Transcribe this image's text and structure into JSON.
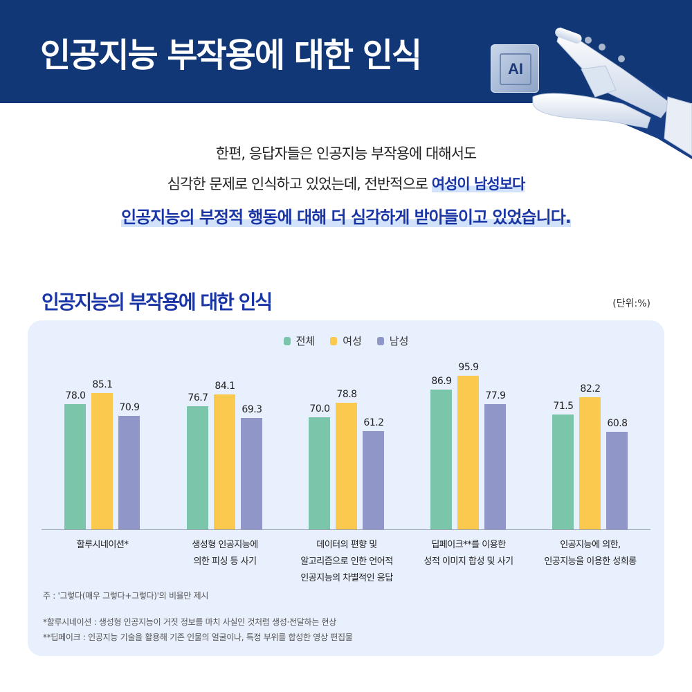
{
  "header": {
    "title": "인공지능 부작용에 대한 인식",
    "chip_label": "AI",
    "bg_color": "#123776"
  },
  "intro": {
    "line1": "한편, 응답자들은 인공지능 부작용에 대해서도",
    "line2_plain": "심각한 문제로 인식하고 있었는데, 전반적으로 ",
    "line2_highlight": "여성이 남성보다",
    "line3_highlight": "인공지능의 부정적 행동에 대해 더 심각하게 받아들이고 있었습니다."
  },
  "chart": {
    "title": "인공지능의 부작용에 대한 인식",
    "unit": "(단위:%)",
    "legend": [
      {
        "label": "전체",
        "color": "#7bc6aa"
      },
      {
        "label": "여성",
        "color": "#fbc94e"
      },
      {
        "label": "남성",
        "color": "#9097c8"
      }
    ],
    "xlabels": [
      [
        "할루시네이션*"
      ],
      [
        "생성형 인공지능에",
        "의한 피싱 등 사기"
      ],
      [
        "데이터의 편향 및",
        "알고리즘으로 인한 언어적",
        "인공지능의 차별적인 응답"
      ],
      [
        "딥페이크**를 이용한",
        "성적 이미지 합성 및 사기"
      ],
      [
        "인공지능에 의한,",
        "인공지능을 이용한 성희롱"
      ]
    ],
    "value_labels": [
      [
        "78.0",
        "85.1",
        "70.9"
      ],
      [
        "76.7",
        "84.1",
        "69.3"
      ],
      [
        "70.0",
        "78.8",
        "61.2"
      ],
      [
        "86.9",
        "95.9",
        "77.9"
      ],
      [
        "71.5",
        "82.2",
        "60.8"
      ]
    ]
  },
  "notes": {
    "n1": "주 : '그렇다(매우 그렇다+그렇다)'의 비율만 제시",
    "n2": "*할루시네이션 : 생성형 인공지능이 거짓 정보를 마치 사실인 것처럼 생성·전달하는 현상",
    "n3": "**딥페이크 : 인공지능 기술을 활용해 기존 인물의 얼굴이나, 특정 부위를 합성한 영상 편집물"
  },
  "chart_data": {
    "type": "bar",
    "title": "인공지능의 부작용에 대한 인식",
    "xlabel": "",
    "ylabel": "%",
    "unit": "(단위:%)",
    "ylim": [
      0,
      100
    ],
    "grid": false,
    "legend_position": "top-center",
    "categories": [
      "할루시네이션*",
      "생성형 인공지능에 의한 피싱 등 사기",
      "데이터의 편향 및 알고리즘으로 인한 언어적 인공지능의 차별적인 응답",
      "딥페이크**를 이용한 성적 이미지 합성 및 사기",
      "인공지능에 의한, 인공지능을 이용한 성희롱"
    ],
    "series": [
      {
        "name": "전체",
        "color": "#7bc6aa",
        "values": [
          78.0,
          76.7,
          70.0,
          86.9,
          71.5
        ]
      },
      {
        "name": "여성",
        "color": "#fbc94e",
        "values": [
          85.1,
          84.1,
          78.8,
          95.9,
          82.2
        ]
      },
      {
        "name": "남성",
        "color": "#9097c8",
        "values": [
          70.9,
          69.3,
          61.2,
          77.9,
          60.8
        ]
      }
    ],
    "annotations": [
      "주 : '그렇다(매우 그렇다+그렇다)'의 비율만 제시",
      "*할루시네이션 : 생성형 인공지능이 거짓 정보를 마치 사실인 것처럼 생성·전달하는 현상",
      "**딥페이크 : 인공지능 기술을 활용해 기존 인물의 얼굴이나, 특정 부위를 합성한 영상 편집물"
    ]
  }
}
